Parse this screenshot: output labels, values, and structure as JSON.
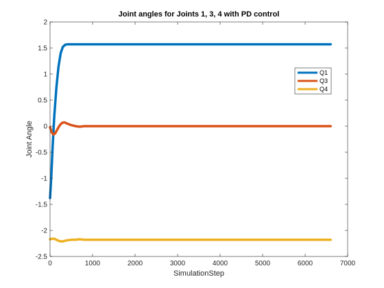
{
  "chart_data": {
    "type": "line",
    "title": "Joint angles for Joints 1, 3, 4 with PD control",
    "xlabel": "SimulationStep",
    "ylabel": "Joint Angle",
    "xlim": [
      0,
      7000
    ],
    "ylim": [
      -2.5,
      2
    ],
    "xticks": [
      0,
      1000,
      2000,
      3000,
      4000,
      5000,
      6000,
      7000
    ],
    "yticks": [
      -2.5,
      -2,
      -1.5,
      -1,
      -0.5,
      0,
      0.5,
      1,
      1.5,
      2
    ],
    "grid": false,
    "legend_position": "top-right",
    "series": [
      {
        "name": "Q1",
        "color": "#0072BD",
        "x": [
          0,
          30,
          60,
          100,
          150,
          200,
          250,
          300,
          350,
          400,
          450,
          500,
          600,
          800,
          1500,
          3000,
          5000,
          6600
        ],
        "y": [
          -1.38,
          -0.95,
          -0.4,
          0.2,
          0.75,
          1.15,
          1.4,
          1.52,
          1.56,
          1.57,
          1.57,
          1.57,
          1.57,
          1.57,
          1.57,
          1.57,
          1.57,
          1.57
        ]
      },
      {
        "name": "Q3",
        "color": "#D95319",
        "x": [
          0,
          40,
          80,
          120,
          160,
          200,
          250,
          300,
          350,
          400,
          500,
          600,
          700,
          800,
          1500,
          3000,
          5000,
          6600
        ],
        "y": [
          -0.02,
          -0.12,
          -0.16,
          -0.14,
          -0.08,
          -0.02,
          0.04,
          0.07,
          0.07,
          0.05,
          0.02,
          0.0,
          -0.01,
          0.0,
          0.0,
          0.0,
          0.0,
          0.0
        ]
      },
      {
        "name": "Q4",
        "color": "#EDB120",
        "x": [
          0,
          50,
          100,
          150,
          200,
          250,
          300,
          350,
          400,
          500,
          600,
          700,
          800,
          1000,
          2000,
          4000,
          6600
        ],
        "y": [
          -2.17,
          -2.16,
          -2.16,
          -2.18,
          -2.2,
          -2.21,
          -2.21,
          -2.2,
          -2.19,
          -2.18,
          -2.18,
          -2.17,
          -2.18,
          -2.18,
          -2.18,
          -2.18,
          -2.18
        ]
      }
    ]
  }
}
